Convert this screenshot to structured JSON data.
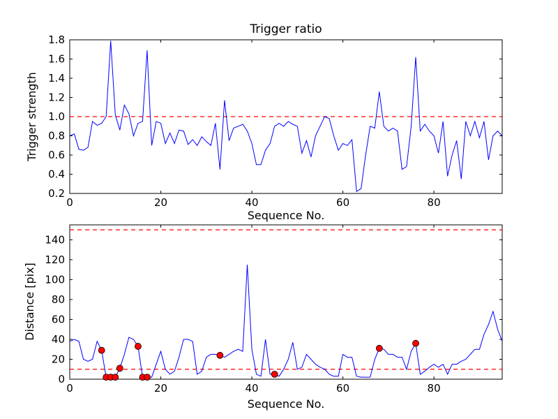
{
  "figure": {
    "background": "#ffffff",
    "axis_color": "#000000",
    "line_color": "#0000ff",
    "threshold_color": "#ff0000",
    "marker_color": "#ff0000",
    "marker_edge_color": "#000000"
  },
  "chart_data": [
    {
      "type": "line",
      "title": "Trigger ratio",
      "xlabel": "Sequence No.",
      "ylabel": "Trigger strength",
      "xlim": [
        0,
        95
      ],
      "ylim": [
        0.2,
        1.8
      ],
      "xticks": [
        0,
        20,
        40,
        60,
        80
      ],
      "xticklabels": [
        "0",
        "20",
        "40",
        "60",
        "80"
      ],
      "yticks": [
        0.2,
        0.4,
        0.6,
        0.8,
        1.0,
        1.2,
        1.4,
        1.6,
        1.8
      ],
      "yticklabels": [
        "0.2",
        "0.4",
        "0.6",
        "0.8",
        "1.0",
        "1.2",
        "1.4",
        "1.6",
        "1.8"
      ],
      "thresholds": [
        1.0
      ],
      "legend": "none",
      "grid": false,
      "x_is_index": true,
      "y": [
        0.8,
        0.82,
        0.66,
        0.65,
        0.68,
        0.95,
        0.91,
        0.93,
        1.0,
        1.79,
        1.02,
        0.86,
        1.12,
        1.03,
        0.8,
        0.93,
        0.95,
        1.69,
        0.7,
        0.95,
        0.93,
        0.72,
        0.83,
        0.72,
        0.86,
        0.85,
        0.71,
        0.76,
        0.7,
        0.79,
        0.74,
        0.7,
        0.93,
        0.45,
        1.17,
        0.75,
        0.88,
        0.9,
        0.92,
        0.85,
        0.72,
        0.5,
        0.5,
        0.65,
        0.72,
        0.9,
        0.93,
        0.9,
        0.95,
        0.92,
        0.9,
        0.62,
        0.75,
        0.58,
        0.8,
        0.9,
        1.0,
        0.98,
        0.8,
        0.65,
        0.72,
        0.7,
        0.76,
        0.22,
        0.25,
        0.6,
        0.9,
        0.88,
        1.26,
        0.9,
        0.85,
        0.88,
        0.85,
        0.45,
        0.48,
        0.9,
        1.62,
        0.85,
        0.92,
        0.85,
        0.8,
        0.62,
        0.95,
        0.38,
        0.6,
        0.75,
        0.35,
        0.95,
        0.8,
        0.95,
        0.78,
        0.95,
        0.55,
        0.8,
        0.85,
        0.8
      ],
      "markers": []
    },
    {
      "type": "line",
      "title": "",
      "xlabel": "Sequence No.",
      "ylabel": "Distance [pix]",
      "xlim": [
        0,
        95
      ],
      "ylim": [
        0,
        155
      ],
      "xticks": [
        0,
        20,
        40,
        60,
        80
      ],
      "xticklabels": [
        "0",
        "20",
        "40",
        "60",
        "80"
      ],
      "yticks": [
        0,
        20,
        40,
        60,
        80,
        100,
        120,
        140
      ],
      "yticklabels": [
        "0",
        "20",
        "40",
        "60",
        "80",
        "100",
        "120",
        "140"
      ],
      "thresholds": [
        150,
        10
      ],
      "legend": "none",
      "grid": false,
      "x_is_index": true,
      "y": [
        38,
        40,
        38,
        20,
        18,
        20,
        38,
        29,
        2,
        2,
        2,
        11,
        25,
        42,
        40,
        33,
        2,
        2,
        2,
        15,
        28,
        10,
        5,
        8,
        22,
        40,
        40,
        38,
        5,
        8,
        22,
        25,
        25,
        24,
        22,
        25,
        28,
        30,
        28,
        115,
        30,
        5,
        3,
        40,
        5,
        5,
        3,
        10,
        20,
        37,
        10,
        12,
        25,
        20,
        15,
        12,
        10,
        5,
        3,
        3,
        25,
        22,
        22,
        3,
        2,
        2,
        2,
        20,
        31,
        30,
        25,
        25,
        22,
        22,
        10,
        28,
        36,
        5,
        8,
        12,
        15,
        12,
        15,
        5,
        15,
        15,
        18,
        20,
        25,
        30,
        30,
        45,
        55,
        68,
        50,
        38
      ],
      "markers": [
        [
          7,
          29
        ],
        [
          8,
          2
        ],
        [
          9,
          2
        ],
        [
          10,
          2
        ],
        [
          11,
          11
        ],
        [
          15,
          33
        ],
        [
          16,
          2
        ],
        [
          17,
          2
        ],
        [
          33,
          24
        ],
        [
          45,
          5
        ],
        [
          68,
          31
        ],
        [
          76,
          36
        ]
      ]
    }
  ]
}
